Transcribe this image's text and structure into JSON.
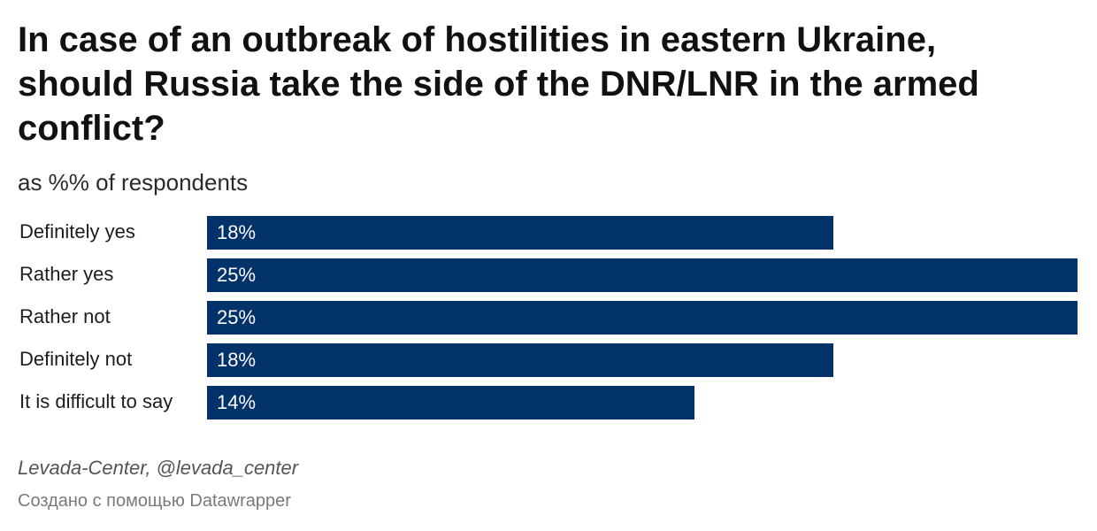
{
  "chart_data": {
    "type": "bar",
    "orientation": "horizontal",
    "title": "In case of an outbreak of hostilities in eastern Ukraine, should Russia take the side of the DNR/LNR in the armed conflict?",
    "subtitle": "as %% of respondents",
    "categories": [
      "Definitely yes",
      "Rather yes",
      "Rather not",
      "Definitely not",
      "It is difficult to say"
    ],
    "values": [
      18,
      25,
      25,
      18,
      14
    ],
    "value_labels": [
      "18%",
      "25%",
      "25%",
      "18%",
      "14%"
    ],
    "xlim": [
      0,
      25
    ],
    "grid": false,
    "legend": "none",
    "bar_color": "#01326a",
    "source": "Levada-Center, @levada_center",
    "credit": "Создано с помощью Datawrapper"
  }
}
